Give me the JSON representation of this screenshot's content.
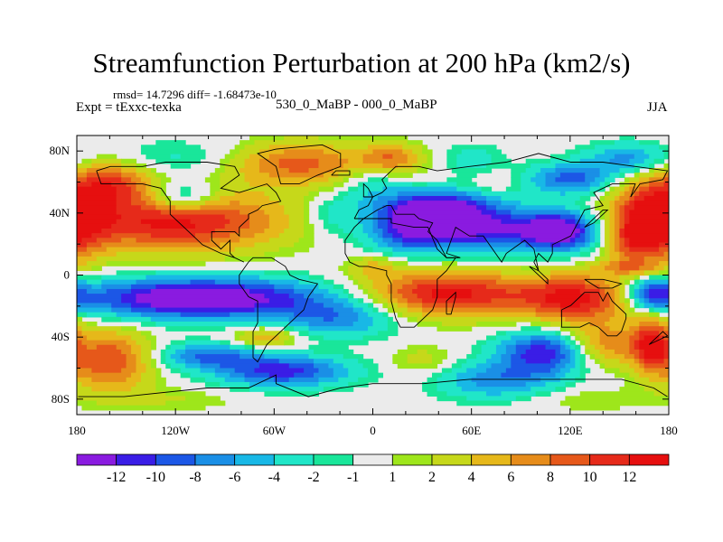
{
  "title": "Streamfunction Perturbation at 200 hPa (km2/s)",
  "stats_line": "rmsd= 14.7296 diff= -1.68473e-10",
  "left_label": "Expt = tExxc-texka",
  "center_label": "530_0_MaBP - 000_0_MaBP",
  "right_label": "JJA",
  "map": {
    "projection": "cylindrical-equidistant",
    "lon_range": [
      -180,
      180
    ],
    "lat_range": [
      -90,
      90
    ],
    "background": "#ebebeb",
    "coastline_color": "#000000",
    "x_ticks": [
      {
        "lon": -180,
        "label": "180"
      },
      {
        "lon": -120,
        "label": "120W"
      },
      {
        "lon": -60,
        "label": "60W"
      },
      {
        "lon": 0,
        "label": "0"
      },
      {
        "lon": 60,
        "label": "60E"
      },
      {
        "lon": 120,
        "label": "120E"
      },
      {
        "lon": 180,
        "label": "180"
      }
    ],
    "y_ticks": [
      {
        "lat": 80,
        "label": "80N"
      },
      {
        "lat": 40,
        "label": "40N"
      },
      {
        "lat": 0,
        "label": "0"
      },
      {
        "lat": -40,
        "label": "40S"
      },
      {
        "lat": -80,
        "label": "80S"
      }
    ],
    "features": [
      {
        "lon": -120,
        "lat": 35,
        "rx": 65,
        "ry": 20,
        "v": 13
      },
      {
        "lon": -160,
        "lat": 60,
        "rx": 25,
        "ry": 14,
        "v": 9
      },
      {
        "lon": -115,
        "lat": 50,
        "rx": 22,
        "ry": 10,
        "v": -8
      },
      {
        "lon": -115,
        "lat": 75,
        "rx": 45,
        "ry": 12,
        "v": -3
      },
      {
        "lon": -45,
        "lat": 72,
        "rx": 45,
        "ry": 14,
        "v": 9
      },
      {
        "lon": -25,
        "lat": 40,
        "rx": 15,
        "ry": 12,
        "v": -3
      },
      {
        "lon": 0,
        "lat": 60,
        "rx": 20,
        "ry": 20,
        "v": -4
      },
      {
        "lon": 20,
        "lat": 30,
        "rx": 18,
        "ry": 15,
        "v": -6
      },
      {
        "lon": 60,
        "lat": 30,
        "rx": 55,
        "ry": 15,
        "v": -13
      },
      {
        "lon": 40,
        "lat": 45,
        "rx": 30,
        "ry": 10,
        "v": -11
      },
      {
        "lon": 115,
        "lat": 28,
        "rx": 22,
        "ry": 12,
        "v": -12
      },
      {
        "lon": 10,
        "lat": 75,
        "rx": 20,
        "ry": 10,
        "v": 8
      },
      {
        "lon": 60,
        "lat": 75,
        "rx": 20,
        "ry": 10,
        "v": -3
      },
      {
        "lon": 75,
        "lat": 60,
        "rx": 10,
        "ry": 6,
        "v": 2
      },
      {
        "lon": 120,
        "lat": 62,
        "rx": 25,
        "ry": 10,
        "v": -9
      },
      {
        "lon": 155,
        "lat": 75,
        "rx": 25,
        "ry": 10,
        "v": -7
      },
      {
        "lon": 170,
        "lat": 35,
        "rx": 25,
        "ry": 25,
        "v": 14
      },
      {
        "lon": 155,
        "lat": 20,
        "rx": 12,
        "ry": 12,
        "v": 4
      },
      {
        "lon": 155,
        "lat": 5,
        "rx": 20,
        "ry": 5,
        "v": 5
      },
      {
        "lon": -105,
        "lat": -15,
        "rx": 75,
        "ry": 13,
        "v": -16
      },
      {
        "lon": -20,
        "lat": -28,
        "rx": 35,
        "ry": 12,
        "v": -7
      },
      {
        "lon": -65,
        "lat": -40,
        "rx": 20,
        "ry": 7,
        "v": 6
      },
      {
        "lon": -100,
        "lat": -52,
        "rx": 30,
        "ry": 8,
        "v": -8
      },
      {
        "lon": -55,
        "lat": -62,
        "rx": 40,
        "ry": 10,
        "v": -11
      },
      {
        "lon": -120,
        "lat": -80,
        "rx": 40,
        "ry": 8,
        "v": 2
      },
      {
        "lon": -160,
        "lat": -55,
        "rx": 25,
        "ry": 20,
        "v": 10
      },
      {
        "lon": 45,
        "lat": -12,
        "rx": 50,
        "ry": 15,
        "v": 13
      },
      {
        "lon": 125,
        "lat": -15,
        "rx": 35,
        "ry": 15,
        "v": 13
      },
      {
        "lon": 0,
        "lat": 5,
        "rx": 15,
        "ry": 8,
        "v": 4
      },
      {
        "lon": 30,
        "lat": -55,
        "rx": 20,
        "ry": 10,
        "v": 3
      },
      {
        "lon": 105,
        "lat": -50,
        "rx": 28,
        "ry": 14,
        "v": -12
      },
      {
        "lon": 75,
        "lat": -68,
        "rx": 35,
        "ry": 12,
        "v": -7
      },
      {
        "lon": 140,
        "lat": -45,
        "rx": 25,
        "ry": 15,
        "v": 8
      },
      {
        "lon": 170,
        "lat": -12,
        "rx": 15,
        "ry": 10,
        "v": -10
      },
      {
        "lon": 170,
        "lat": -45,
        "rx": 12,
        "ry": 18,
        "v": 11
      },
      {
        "lon": 130,
        "lat": -80,
        "rx": 40,
        "ry": 8,
        "v": 2
      }
    ]
  },
  "colorbar": {
    "colors": [
      "#8a1be0",
      "#3a1de6",
      "#1c57e6",
      "#1a8fe6",
      "#18b8e6",
      "#20e6c8",
      "#19e69a",
      "#ebebeb",
      "#9ee61b",
      "#c6d81a",
      "#e6b81a",
      "#e68c1a",
      "#e6581a",
      "#e62a1a",
      "#e60f0f"
    ],
    "levels": [
      -12,
      -10,
      -8,
      -6,
      -4,
      -2,
      -1,
      1,
      2,
      4,
      6,
      8,
      10,
      12
    ],
    "labels": [
      "-12",
      "-10",
      "-8",
      "-6",
      "-4",
      "-2",
      "-1",
      "1",
      "2",
      "4",
      "6",
      "8",
      "10",
      "12"
    ]
  }
}
